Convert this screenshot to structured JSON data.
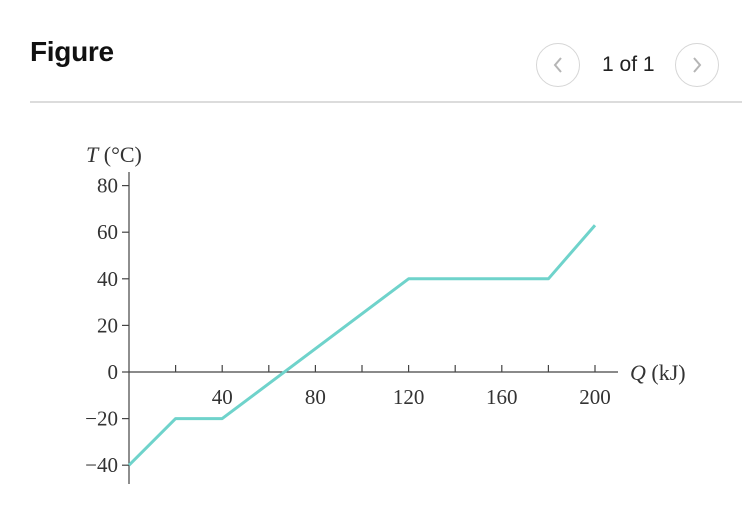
{
  "header": {
    "title": "Figure"
  },
  "pager": {
    "text": "1 of 1",
    "prev_icon": "chevron-left-icon",
    "next_icon": "chevron-right-icon"
  },
  "colors": {
    "line": "#6fd3cb",
    "axis": "#444444"
  },
  "chart_data": {
    "type": "line",
    "title": "",
    "ylabel": "T (°C)",
    "xlabel": "Q (kJ)",
    "xlim": [
      0,
      200
    ],
    "ylim": [
      -40,
      80
    ],
    "x_ticks": [
      20,
      40,
      60,
      80,
      100,
      120,
      140,
      160,
      180,
      200
    ],
    "x_tick_labels": [
      {
        "x": 40,
        "label": "40"
      },
      {
        "x": 80,
        "label": "80"
      },
      {
        "x": 120,
        "label": "120"
      },
      {
        "x": 160,
        "label": "160"
      },
      {
        "x": 200,
        "label": "200"
      }
    ],
    "y_ticks": [
      {
        "y": 80,
        "label": "80"
      },
      {
        "y": 60,
        "label": "60"
      },
      {
        "y": 40,
        "label": "40"
      },
      {
        "y": 20,
        "label": "20"
      },
      {
        "y": 0,
        "label": "0"
      },
      {
        "y": -20,
        "label": "−20"
      },
      {
        "y": -40,
        "label": "−40"
      }
    ],
    "grid": false,
    "series": [
      {
        "x": [
          0,
          20,
          40,
          120,
          180,
          200
        ],
        "y": [
          -40,
          -20,
          -20,
          40,
          40,
          63
        ]
      }
    ]
  }
}
